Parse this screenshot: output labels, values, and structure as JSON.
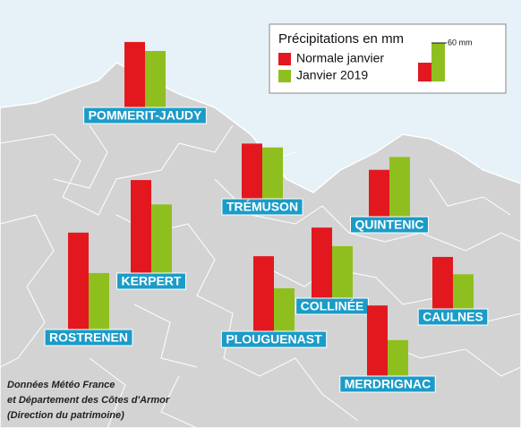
{
  "legend": {
    "title": "Précipitations en mm",
    "series": [
      {
        "name": "Normale janvier",
        "color": "#e3181f"
      },
      {
        "name": "Janvier 2019",
        "color": "#8fbf1e"
      }
    ],
    "scale": {
      "value": 60,
      "label": "60 mm"
    }
  },
  "stations": [
    {
      "name": "POMMERIT-JAUDY",
      "values": [
        102,
        88
      ]
    },
    {
      "name": "TRÉMUSON",
      "values": [
        86,
        80
      ]
    },
    {
      "name": "QUINTENIC",
      "values": [
        73,
        93
      ]
    },
    {
      "name": "KERPERT",
      "values": [
        145,
        107
      ]
    },
    {
      "name": "ROSTRENEN",
      "values": [
        151,
        88
      ]
    },
    {
      "name": "PLOUGUENAST",
      "values": [
        117,
        67
      ]
    },
    {
      "name": "COLLINÉE",
      "values": [
        110,
        81
      ]
    },
    {
      "name": "MERDRIGNAC",
      "values": [
        110,
        56
      ]
    },
    {
      "name": "CAULNES",
      "values": [
        81,
        54
      ]
    }
  ],
  "source": [
    "Données Météo France",
    "et Département des Côtes d'Armor",
    "(Direction du patrimoine)"
  ]
}
